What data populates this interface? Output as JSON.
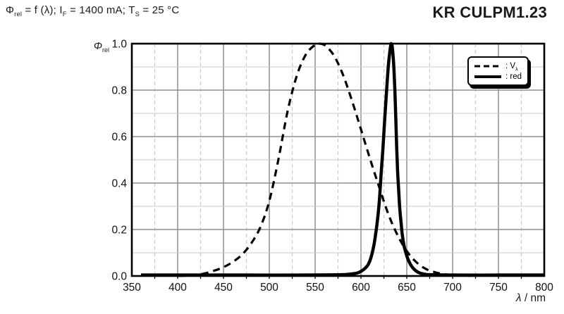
{
  "header": {
    "condition_text": "Φrel = f (λ); IF = 1400 mA; TS = 25 °C",
    "condition_segments": [
      {
        "t": "Φ"
      },
      {
        "t": "rel",
        "sub": true
      },
      {
        "t": " = f (λ); I"
      },
      {
        "t": "F",
        "sub": true
      },
      {
        "t": " = 1400 mA; T"
      },
      {
        "t": "S",
        "sub": true
      },
      {
        "t": " = 25 °C"
      }
    ],
    "product": "KR CULPM1.23"
  },
  "chart_data": {
    "type": "line",
    "title": "Φrel = f (λ); IF = 1400 mA; TS = 25 °C",
    "xlabel": "λ / nm",
    "ylabel": "Φrel",
    "xlabel_segments": [
      {
        "t": "λ",
        "i": true
      },
      {
        "t": " / nm"
      }
    ],
    "ylabel_segments": [
      {
        "t": "Φ",
        "i": true
      },
      {
        "t": "rel",
        "sub": true
      }
    ],
    "xlim": [
      350,
      800
    ],
    "ylim": [
      0,
      1
    ],
    "x_major_step": 50,
    "x_minor_step": 25,
    "y_major_step": 0.2,
    "y_minor_step": 0.1,
    "grid": true,
    "x_ticks": [
      {
        "label": "350",
        "value": 350
      },
      {
        "label": "400",
        "value": 400
      },
      {
        "label": "450",
        "value": 450
      },
      {
        "label": "500",
        "value": 500
      },
      {
        "label": "550",
        "value": 550
      },
      {
        "label": "600",
        "value": 600
      },
      {
        "label": "650",
        "value": 650
      },
      {
        "label": "700",
        "value": 700
      },
      {
        "label": "750",
        "value": 750
      },
      {
        "label": "800",
        "value": 800
      }
    ],
    "y_ticks": [
      {
        "label": "0.0",
        "value": 0
      },
      {
        "label": "0.2",
        "value": 0.2
      },
      {
        "label": "0.4",
        "value": 0.4
      },
      {
        "label": "0.6",
        "value": 0.6
      },
      {
        "label": "0.8",
        "value": 0.8
      },
      {
        "label": "1.0",
        "value": 1
      }
    ],
    "legend": {
      "position": "top-right",
      "entries": [
        {
          "id": "v-lambda",
          "name": "V_λ",
          "style": "dashed",
          "parts": [
            {
              "t": ": V"
            },
            {
              "t": "λ",
              "sub": true
            }
          ]
        },
        {
          "id": "red",
          "name": "red",
          "style": "solid",
          "parts": [
            {
              "t": ": red"
            }
          ]
        }
      ]
    },
    "colors": {
      "curve": "#000000",
      "frame": "#000000",
      "grid_major": "#8f8f8f",
      "grid_minor": "#c8c8c8",
      "background": "#ffffff"
    },
    "series": [
      {
        "id": "v-lambda",
        "name": "V_λ",
        "style": "dashed",
        "color": "#000000",
        "width": 3.2,
        "points": [
          [
            400,
            0.0004
          ],
          [
            410,
            0.0012
          ],
          [
            420,
            0.004
          ],
          [
            430,
            0.0116
          ],
          [
            440,
            0.023
          ],
          [
            450,
            0.038
          ],
          [
            460,
            0.06
          ],
          [
            470,
            0.091
          ],
          [
            480,
            0.139
          ],
          [
            490,
            0.208
          ],
          [
            500,
            0.323
          ],
          [
            510,
            0.503
          ],
          [
            520,
            0.71
          ],
          [
            530,
            0.862
          ],
          [
            540,
            0.954
          ],
          [
            550,
            0.995
          ],
          [
            555,
            1.0
          ],
          [
            560,
            0.995
          ],
          [
            570,
            0.952
          ],
          [
            580,
            0.87
          ],
          [
            590,
            0.757
          ],
          [
            600,
            0.631
          ],
          [
            610,
            0.503
          ],
          [
            620,
            0.381
          ],
          [
            630,
            0.265
          ],
          [
            640,
            0.175
          ],
          [
            650,
            0.107
          ],
          [
            660,
            0.061
          ],
          [
            670,
            0.032
          ],
          [
            680,
            0.017
          ],
          [
            690,
            0.0082
          ],
          [
            700,
            0.0041
          ],
          [
            710,
            0.0021
          ],
          [
            720,
            0.001
          ]
        ]
      },
      {
        "id": "red",
        "name": "red",
        "style": "solid",
        "color": "#000000",
        "width": 4.5,
        "points": [
          [
            360,
            0.004
          ],
          [
            420,
            0.004
          ],
          [
            480,
            0.004
          ],
          [
            540,
            0.004
          ],
          [
            570,
            0.005
          ],
          [
            585,
            0.007
          ],
          [
            595,
            0.012
          ],
          [
            600,
            0.02
          ],
          [
            605,
            0.035
          ],
          [
            608,
            0.05
          ],
          [
            611,
            0.08
          ],
          [
            614,
            0.13
          ],
          [
            616,
            0.18
          ],
          [
            618,
            0.24
          ],
          [
            620,
            0.32
          ],
          [
            622,
            0.44
          ],
          [
            624,
            0.55
          ],
          [
            626,
            0.68
          ],
          [
            628,
            0.8
          ],
          [
            630,
            0.91
          ],
          [
            632,
            0.98
          ],
          [
            633,
            1.0
          ],
          [
            634,
            0.99
          ],
          [
            635,
            0.95
          ],
          [
            636,
            0.89
          ],
          [
            637,
            0.8
          ],
          [
            638,
            0.68
          ],
          [
            639,
            0.55
          ],
          [
            640,
            0.45
          ],
          [
            641,
            0.38
          ],
          [
            642,
            0.31
          ],
          [
            643,
            0.26
          ],
          [
            644,
            0.22
          ],
          [
            645,
            0.18
          ],
          [
            647,
            0.13
          ],
          [
            649,
            0.1
          ],
          [
            651,
            0.075
          ],
          [
            654,
            0.05
          ],
          [
            657,
            0.033
          ],
          [
            660,
            0.022
          ],
          [
            664,
            0.013
          ],
          [
            668,
            0.009
          ],
          [
            672,
            0.006
          ],
          [
            680,
            0.005
          ],
          [
            700,
            0.004
          ],
          [
            750,
            0.004
          ],
          [
            800,
            0.004
          ]
        ]
      }
    ]
  }
}
